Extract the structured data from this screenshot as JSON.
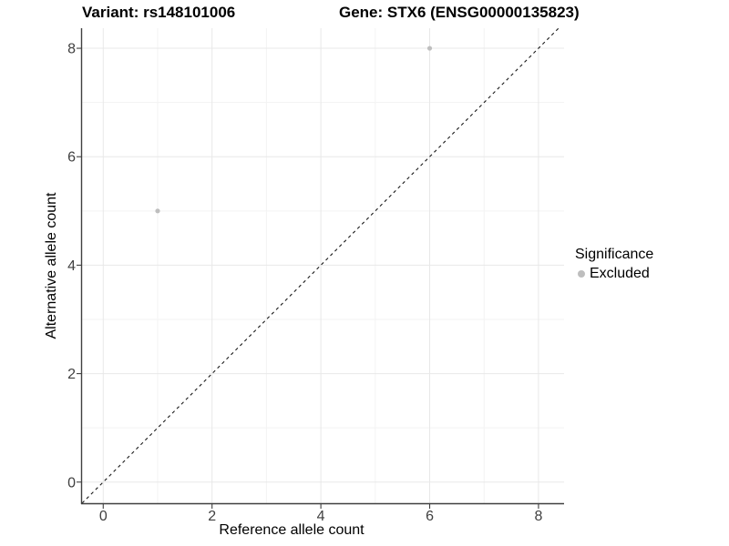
{
  "titles": {
    "variant": "Variant: rs148101006",
    "gene": "Gene: STX6 (ENSG00000135823)"
  },
  "legend": {
    "title": "Significance",
    "items": [
      {
        "label": "Excluded",
        "color": "#bebebe",
        "marker": "circle-icon"
      }
    ]
  },
  "chart_data": {
    "type": "scatter",
    "xlabel": "Reference allele count",
    "ylabel": "Alternative allele count",
    "x_ticks": [
      0,
      2,
      4,
      6,
      8
    ],
    "y_ticks": [
      0,
      2,
      4,
      6,
      8
    ],
    "x_minor": [
      1,
      3,
      5,
      7
    ],
    "y_minor": [
      1,
      3,
      5,
      7
    ],
    "xlim": [
      -0.39,
      8.47
    ],
    "ylim": [
      -0.39,
      8.37
    ],
    "grid": true,
    "legend_position": "right",
    "series": [
      {
        "name": "Excluded",
        "color": "#bebebe",
        "points": [
          {
            "x": 1,
            "y": 5
          },
          {
            "x": 6,
            "y": 8
          }
        ]
      }
    ],
    "reference_line": {
      "type": "identity",
      "style": "dashed",
      "color": "#1a1a1a"
    }
  },
  "colors": {
    "axis_line": "#404040",
    "tick_label": "#404040",
    "grid_major": "#e8e8e8",
    "grid_minor": "#f3f3f3",
    "point": "#bebebe"
  }
}
